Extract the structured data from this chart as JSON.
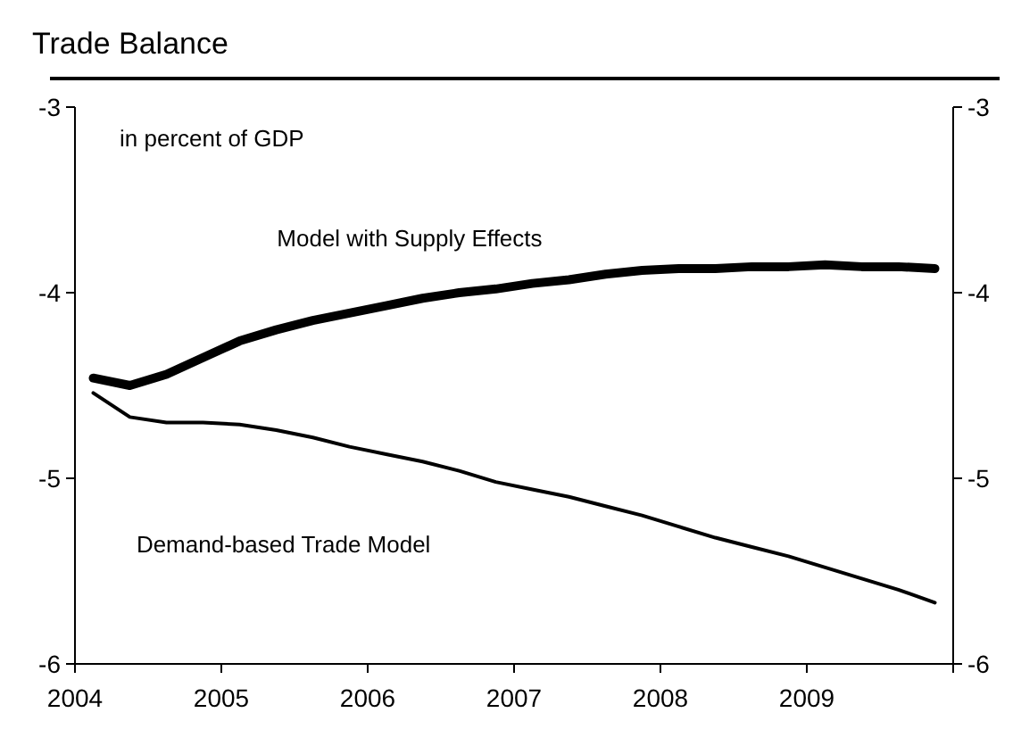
{
  "chart_data": {
    "type": "line",
    "title": "Trade Balance",
    "subtitle": "in percent of GDP",
    "x": [
      2004.125,
      2004.375,
      2004.625,
      2004.875,
      2005.125,
      2005.375,
      2005.625,
      2005.875,
      2006.125,
      2006.375,
      2006.625,
      2006.875,
      2007.125,
      2007.375,
      2007.625,
      2007.875,
      2008.125,
      2008.375,
      2008.625,
      2008.875,
      2009.125,
      2009.375,
      2009.625,
      2009.875
    ],
    "series": [
      {
        "name": "Model with Supply Effects",
        "color": "#000000",
        "values": [
          -4.46,
          -4.5,
          -4.44,
          -4.35,
          -4.26,
          -4.2,
          -4.15,
          -4.11,
          -4.07,
          -4.03,
          -4.0,
          -3.98,
          -3.95,
          -3.93,
          -3.9,
          -3.88,
          -3.87,
          -3.87,
          -3.86,
          -3.86,
          -3.85,
          -3.86,
          -3.86,
          -3.87
        ]
      },
      {
        "name": "Demand-based Trade Model",
        "color": "#000000",
        "values": [
          -4.54,
          -4.67,
          -4.7,
          -4.7,
          -4.71,
          -4.74,
          -4.78,
          -4.83,
          -4.87,
          -4.91,
          -4.96,
          -5.02,
          -5.06,
          -5.1,
          -5.15,
          -5.2,
          -5.26,
          -5.32,
          -5.37,
          -5.42,
          -5.48,
          -5.54,
          -5.6,
          -5.67
        ]
      }
    ],
    "xlim": [
      2004,
      2010
    ],
    "xticks": [
      2004,
      2005,
      2006,
      2007,
      2008,
      2009,
      {
        "value": 2010,
        "label": null
      }
    ],
    "ylim": [
      -6,
      -3
    ],
    "yticks": [
      -6,
      -5,
      -4,
      -3
    ],
    "y2lim": [
      -6,
      -3
    ],
    "y2ticks": [
      -6,
      -5,
      -4,
      -3
    ],
    "grid": false,
    "marker": "none",
    "line_style": "solid"
  }
}
